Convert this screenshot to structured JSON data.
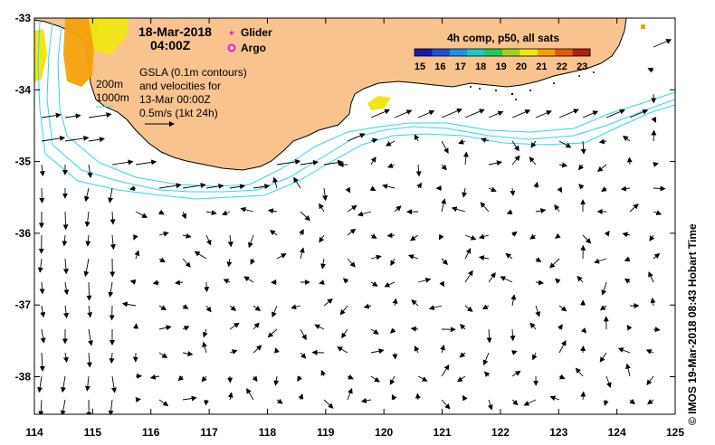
{
  "map": {
    "date_line1": "18-Mar-2018",
    "date_line2": "04:00Z",
    "legend_glider": "Glider",
    "legend_argo": "Argo",
    "sst_title": "4h comp, p50, all sats",
    "sst_ticks": [
      "15",
      "16",
      "17",
      "18",
      "19",
      "20",
      "21",
      "22",
      "23"
    ],
    "sst_colors": [
      "#1a1aa8",
      "#1f4fd8",
      "#1e90e8",
      "#1cc8c8",
      "#22c85a",
      "#9fd21e",
      "#f0e614",
      "#f5a00a",
      "#e05a0a",
      "#b01e14"
    ],
    "gsla_lines": [
      "GSLA (0.1m contours)",
      "and velocities for",
      "13-Mar 00:00Z",
      "0.5m/s (1kt 24h)"
    ],
    "isobath_200": "200m",
    "isobath_1000": "1000m",
    "x_ticks": [
      "114",
      "115",
      "116",
      "117",
      "118",
      "119",
      "120",
      "121",
      "122",
      "123",
      "124",
      "125"
    ],
    "y_ticks": [
      "-33",
      "-34",
      "-35",
      "-36",
      "-37",
      "-38"
    ],
    "credit": "© IMOS 19-Mar-2018 08:43 Hobart Time",
    "colors": {
      "land": "#f9c38f",
      "isobath": "#2ed8e8",
      "glider": "#e020d0",
      "argo": "#e020d0"
    }
  }
}
